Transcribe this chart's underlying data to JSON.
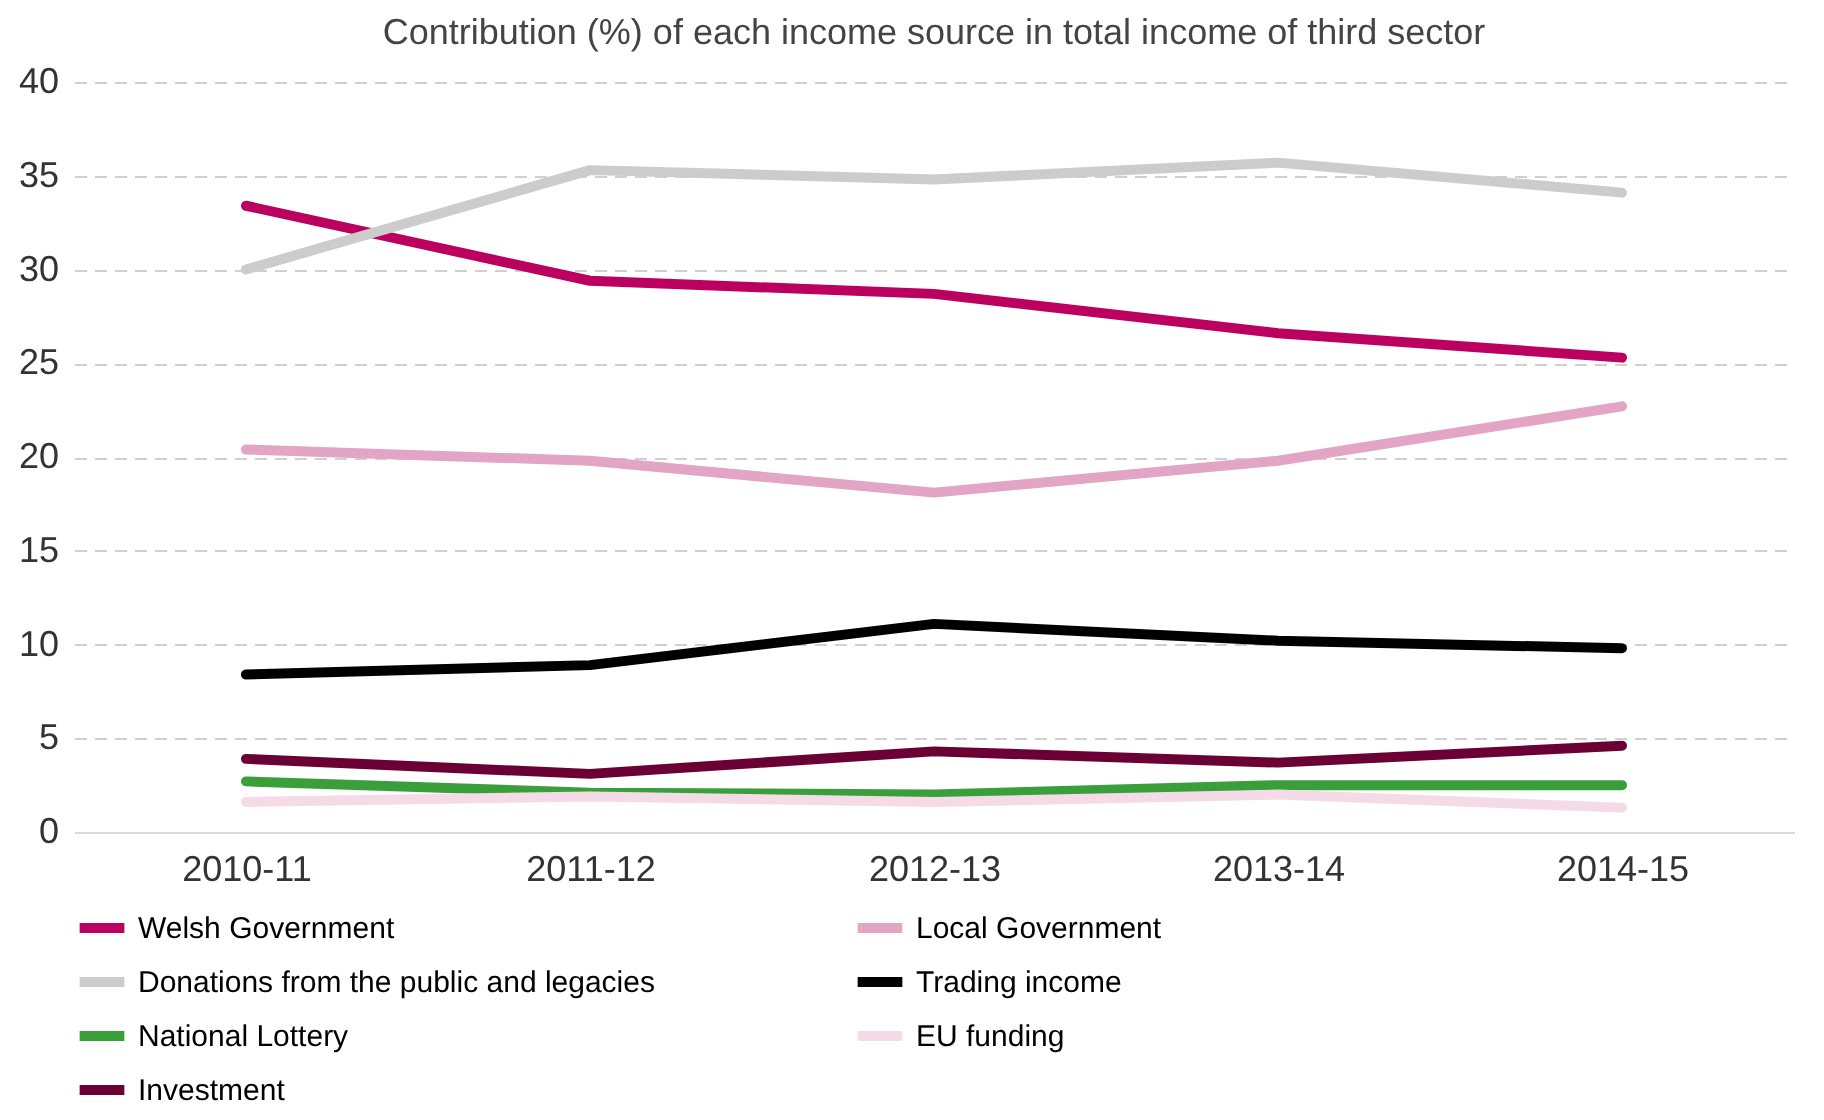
{
  "chart_data": {
    "type": "line",
    "title": "Contribution (%) of each income source in total income of third sector",
    "categories": [
      "2010-11",
      "2011-12",
      "2012-13",
      "2013-14",
      "2014-15"
    ],
    "series": [
      {
        "name": "Welsh Government",
        "color": "#bb0060",
        "values": [
          33.4,
          29.4,
          28.7,
          26.6,
          25.3
        ]
      },
      {
        "name": "Local Government",
        "color": "#e2a6c4",
        "values": [
          20.4,
          19.8,
          18.1,
          19.8,
          22.7
        ]
      },
      {
        "name": "Donations from the public and legacies",
        "color": "#cccccc",
        "values": [
          30.0,
          35.3,
          34.8,
          35.7,
          34.1
        ]
      },
      {
        "name": "Trading income",
        "color": "#000000",
        "values": [
          8.4,
          8.9,
          11.1,
          10.2,
          9.8
        ]
      },
      {
        "name": "National Lottery",
        "color": "#3a9f3a",
        "values": [
          2.7,
          2.1,
          2.0,
          2.5,
          2.5
        ]
      },
      {
        "name": "EU funding",
        "color": "#f5dbe8",
        "values": [
          1.6,
          1.9,
          1.6,
          2.0,
          1.3
        ]
      },
      {
        "name": "Investment",
        "color": "#6b0035",
        "values": [
          3.9,
          3.1,
          4.3,
          3.7,
          4.6
        ]
      }
    ],
    "ylim": [
      0,
      40
    ],
    "yticks": [
      0,
      5,
      10,
      15,
      20,
      25,
      30,
      35,
      40
    ],
    "grid": "y",
    "legend": "bottom",
    "marker": "none",
    "line_style": "solid"
  }
}
